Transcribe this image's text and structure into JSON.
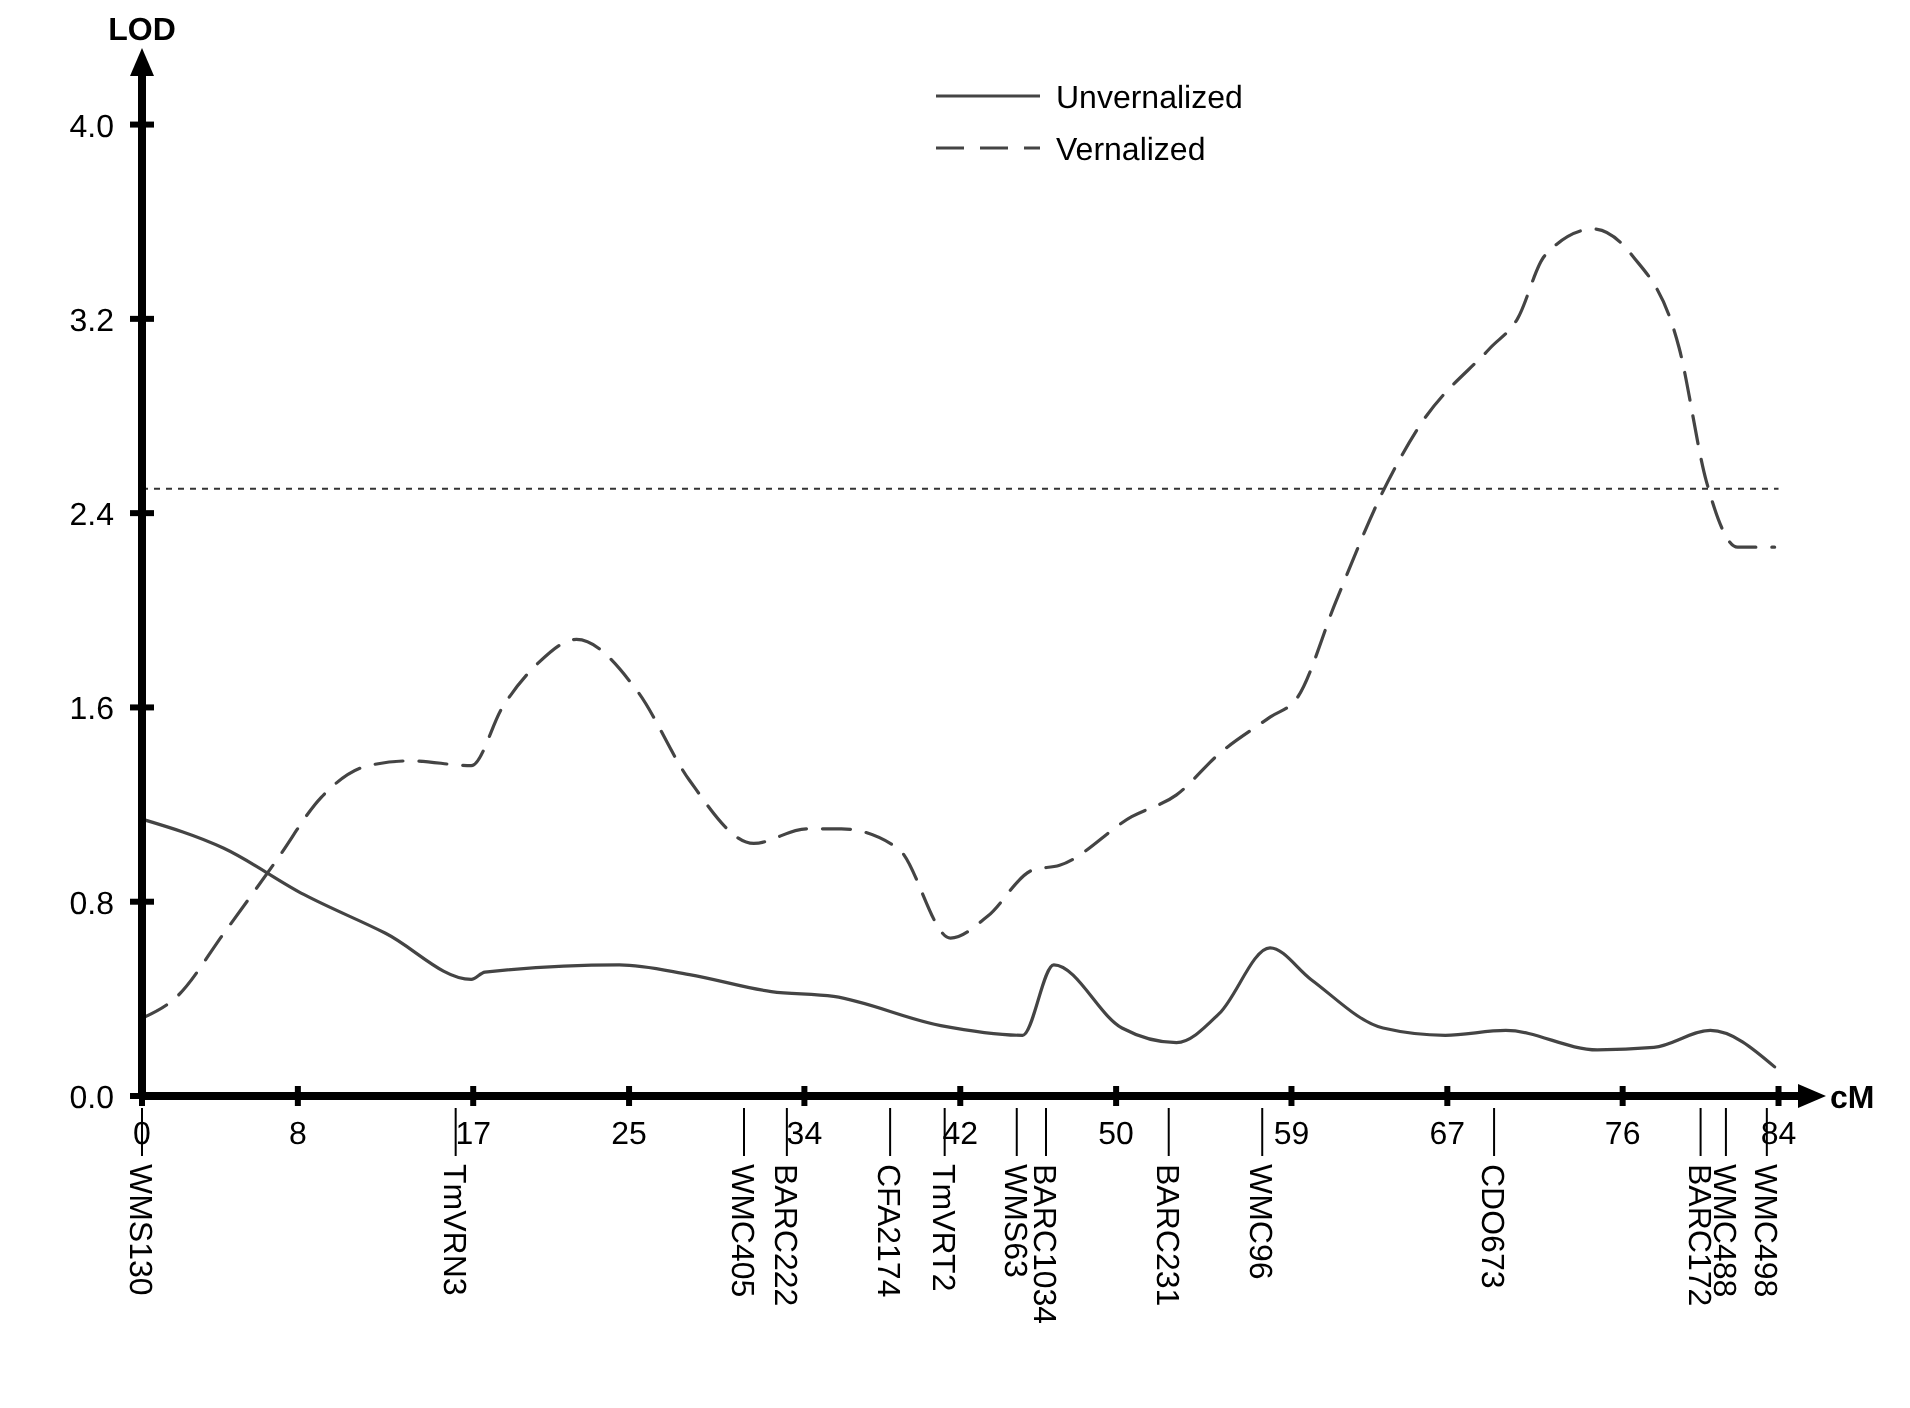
{
  "chart_data": {
    "type": "line",
    "xlabel": "cM",
    "ylabel": "LOD",
    "xlim": [
      0,
      85
    ],
    "ylim": [
      0,
      4.2
    ],
    "xticks": [
      0,
      8,
      17,
      25,
      34,
      42,
      50,
      59,
      67,
      76,
      84
    ],
    "yticks": [
      {
        "value": 0,
        "label": "0.0"
      },
      {
        "value": 0.8,
        "label": "0.8"
      },
      {
        "value": 1.6,
        "label": "1.6"
      },
      {
        "value": 2.4,
        "label": "2.4"
      },
      {
        "value": 3.2,
        "label": "3.2"
      },
      {
        "value": 4,
        "label": "4.0"
      }
    ],
    "legend": "top",
    "grid": false,
    "marker": "none",
    "series": [
      {
        "name": "Unvernalized",
        "color": "#444444",
        "line_style": "solid",
        "x": [
          0,
          4.2,
          8.3,
          12.5,
          16.9,
          17.6,
          24.5,
          28.1,
          32.3,
          35.5,
          41,
          45.2,
          46.8,
          50.3,
          53.1,
          55.3,
          57.9,
          60,
          63.7,
          66.9,
          70,
          74.7,
          77.6,
          80.5,
          83.8
        ],
        "values": [
          1.14,
          1.02,
          0.83,
          0.67,
          0.48,
          0.51,
          0.54,
          0.5,
          0.43,
          0.41,
          0.29,
          0.25,
          0.54,
          0.28,
          0.22,
          0.34,
          0.61,
          0.48,
          0.28,
          0.25,
          0.27,
          0.19,
          0.2,
          0.27,
          0.12
        ]
      },
      {
        "name": "Vernalized",
        "color": "#444444",
        "line_style": "dashed",
        "x": [
          0,
          1.8,
          4.2,
          6.9,
          9.2,
          11.6,
          13.8,
          16.9,
          18.5,
          20.3,
          22.3,
          25.4,
          28.1,
          31.4,
          34.1,
          35.9,
          38.8,
          41.5,
          43.4,
          45.7,
          47.1,
          50.8,
          53.1,
          55.3,
          57.9,
          59.3,
          61.3,
          63.7,
          65.5,
          69.2,
          70.6,
          72,
          74.5,
          76.5,
          78.9,
          80.3,
          81.9,
          83.8
        ],
        "values": [
          0.32,
          0.41,
          0.67,
          0.97,
          1.23,
          1.36,
          1.38,
          1.36,
          1.6,
          1.78,
          1.88,
          1.67,
          1.3,
          1.04,
          1.1,
          1.1,
          1.02,
          0.65,
          0.74,
          0.93,
          0.95,
          1.15,
          1.24,
          1.41,
          1.56,
          1.64,
          2.04,
          2.49,
          2.75,
          3.08,
          3.2,
          3.46,
          3.57,
          3.46,
          3.08,
          2.53,
          2.26,
          2.26
        ]
      }
    ],
    "ref_lines": [
      {
        "axis": "y",
        "value": 2.5,
        "line_style": "dotted",
        "color": "#333333"
      },
      {
        "axis": "x",
        "value": 0,
        "label": "WMS130",
        "color": "#000000"
      },
      {
        "axis": "x",
        "value": 16.1,
        "label": "TmVRN3",
        "color": "#000000"
      },
      {
        "axis": "x",
        "value": 30.9,
        "label": "WMC405",
        "color": "#000000"
      },
      {
        "axis": "x",
        "value": 33.1,
        "label": "BARC222",
        "color": "#000000"
      },
      {
        "axis": "x",
        "value": 38.4,
        "label": "CFA2174",
        "color": "#000000"
      },
      {
        "axis": "x",
        "value": 41.2,
        "label": "TmVRT2",
        "color": "#000000"
      },
      {
        "axis": "x",
        "value": 44.9,
        "label": "WMS63",
        "color": "#000000"
      },
      {
        "axis": "x",
        "value": 46.4,
        "label": "BARC1034",
        "color": "#000000"
      },
      {
        "axis": "x",
        "value": 52.7,
        "label": "BARC231",
        "color": "#000000"
      },
      {
        "axis": "x",
        "value": 57.5,
        "label": "WMC96",
        "color": "#000000"
      },
      {
        "axis": "x",
        "value": 69.4,
        "label": "CDO673",
        "color": "#000000"
      },
      {
        "axis": "x",
        "value": 80,
        "label": "BARC172",
        "color": "#000000"
      },
      {
        "axis": "x",
        "value": 81.3,
        "label": "WMC488",
        "color": "#000000"
      },
      {
        "axis": "x",
        "value": 83.4,
        "label": "WMC498",
        "color": "#000000"
      }
    ]
  }
}
